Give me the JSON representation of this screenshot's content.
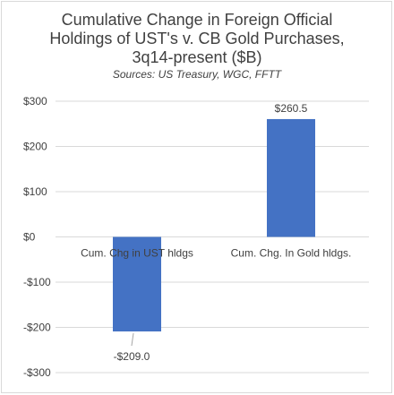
{
  "chart_data": {
    "type": "bar",
    "title_lines": [
      "Cumulative Change in Foreign Official",
      "Holdings of UST's v. CB Gold Purchases,",
      "3q14-present ($B)"
    ],
    "subtitle": "Sources:  US Treasury, WGC, FFTT",
    "categories": [
      "Cum. Chg in UST hldgs",
      "Cum. Chg. In Gold hldgs."
    ],
    "values": [
      -209.0,
      260.5
    ],
    "data_labels": [
      "-$209.0",
      "$260.5"
    ],
    "y_ticks": [
      300,
      200,
      100,
      0,
      -100,
      -200,
      -300
    ],
    "y_tick_labels": [
      "$300",
      "$200",
      "$100",
      "$0",
      "-$100",
      "-$200",
      "-$300"
    ],
    "ylim": [
      -300,
      300
    ],
    "grid": true,
    "bar_color": "#4472c4",
    "gridline_color": "#d9d9d9",
    "text_color": "#404040"
  }
}
